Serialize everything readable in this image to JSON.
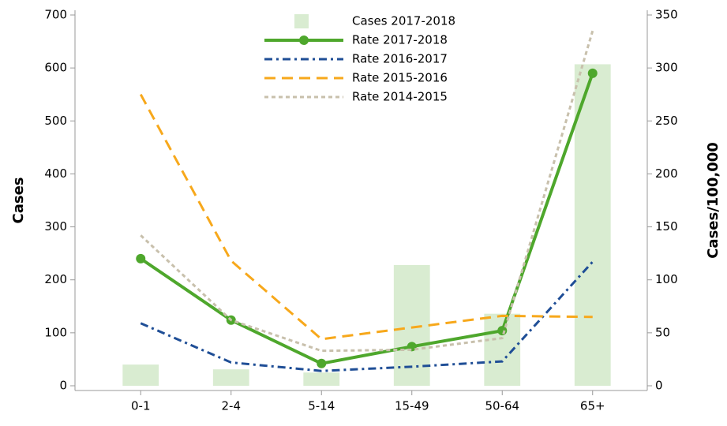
{
  "chart_data": {
    "type": "bar-line",
    "y_label": "Cases",
    "y2_label": "Cases/100,000",
    "categories": [
      "0-1",
      "2-4",
      "5-14",
      "15-49",
      "50-64",
      "65+"
    ],
    "ylim": [
      0,
      700
    ],
    "yticks": [
      0,
      100,
      200,
      300,
      400,
      500,
      600,
      700
    ],
    "y2lim": [
      0,
      350
    ],
    "y2ticks": [
      0,
      50,
      100,
      150,
      200,
      250,
      300,
      350
    ],
    "series": [
      {
        "name": "Cases 2017-2018",
        "type": "bar",
        "color": "#d9ecd1",
        "values": [
          40,
          31,
          25,
          228,
          136,
          607
        ]
      },
      {
        "name": "Rate 2017-2018",
        "type": "line",
        "axis": "y2",
        "color": "#4ea72c",
        "style": "solid-markers",
        "values": [
          120,
          62,
          21,
          37,
          52,
          295
        ]
      },
      {
        "name": "Rate 2016-2017",
        "type": "line",
        "axis": "y2",
        "color": "#1f4e96",
        "style": "dashdot",
        "values": [
          59,
          22,
          14,
          18,
          23,
          117
        ]
      },
      {
        "name": "Rate 2015-2016",
        "type": "line",
        "axis": "y2",
        "color": "#f7a81b",
        "style": "dashed",
        "values": [
          275,
          118,
          44,
          55,
          66,
          65
        ]
      },
      {
        "name": "Rate 2014-2015",
        "type": "line",
        "axis": "y2",
        "color": "#c8c0ac",
        "style": "dotted",
        "values": [
          142,
          62,
          33,
          34,
          45,
          335
        ]
      }
    ]
  }
}
